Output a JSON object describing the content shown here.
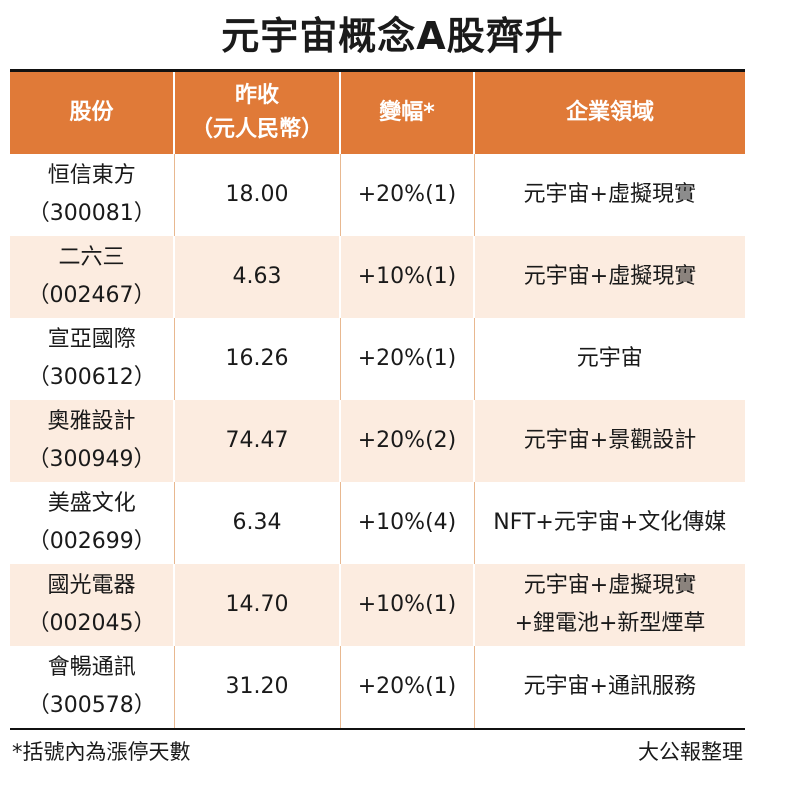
{
  "title": "元宇宙概念A股齊升",
  "headers": {
    "stock": "股份",
    "close_line1": "昨收",
    "close_line2": "（元人民幣）",
    "change": "變幅*",
    "sector": "企業領域"
  },
  "rows": [
    {
      "name": "恒信東方",
      "code": "（300081）",
      "close": "18.00",
      "change": "+20%(1)",
      "sector": [
        "元宇宙+虛擬現實"
      ]
    },
    {
      "name": "二六三",
      "code": "（002467）",
      "close": "4.63",
      "change": "+10%(1)",
      "sector": [
        "元宇宙+虛擬現實"
      ]
    },
    {
      "name": "宣亞國際",
      "code": "（300612）",
      "close": "16.26",
      "change": "+20%(1)",
      "sector": [
        "元宇宙"
      ]
    },
    {
      "name": "奧雅設計",
      "code": "（300949）",
      "close": "74.47",
      "change": "+20%(2)",
      "sector": [
        "元宇宙+景觀設計"
      ]
    },
    {
      "name": "美盛文化",
      "code": "（002699）",
      "close": "6.34",
      "change": "+10%(4)",
      "sector": [
        "NFT+元宇宙+文化傳媒"
      ]
    },
    {
      "name": "國光電器",
      "code": "（002045）",
      "close": "14.70",
      "change": "+10%(1)",
      "sector": [
        "元宇宙+虛擬現實",
        "+鋰電池+新型煙草"
      ]
    },
    {
      "name": "會暢通訊",
      "code": "（300578）",
      "close": "31.20",
      "change": "+20%(1)",
      "sector": [
        "元宇宙+通訊服務"
      ]
    }
  ],
  "footnote": "*括號內為漲停天數",
  "credit": "大公報整理",
  "colors": {
    "header_bg": "#e07a38",
    "stripe_bg": "#fcece0"
  }
}
